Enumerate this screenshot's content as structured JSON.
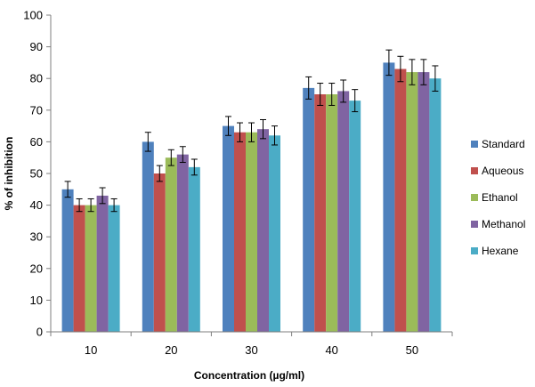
{
  "chart_data": {
    "type": "bar",
    "xlabel": "Concentration (µg/ml)",
    "ylabel": "% of inhibition",
    "categories": [
      "10",
      "20",
      "30",
      "40",
      "50"
    ],
    "ylim": [
      0,
      100
    ],
    "yticks": [
      0,
      10,
      20,
      30,
      40,
      50,
      60,
      70,
      80,
      90,
      100
    ],
    "grid": false,
    "legend_position": "right",
    "error_bars": true,
    "series": [
      {
        "name": "Standard",
        "color": "#4F81BD",
        "values": [
          45,
          60,
          65,
          77,
          85
        ],
        "errors": [
          2.5,
          3,
          3,
          3.5,
          4
        ]
      },
      {
        "name": "Aqueous",
        "color": "#C0504D",
        "values": [
          40,
          50,
          63,
          75,
          83
        ],
        "errors": [
          2,
          2.5,
          3,
          3.5,
          4
        ]
      },
      {
        "name": "Ethanol",
        "color": "#9BBB59",
        "values": [
          40,
          55,
          63,
          75,
          82
        ],
        "errors": [
          2,
          2.5,
          3,
          3.5,
          4
        ]
      },
      {
        "name": "Methanol",
        "color": "#8064A2",
        "values": [
          43,
          56,
          64,
          76,
          82
        ],
        "errors": [
          2.5,
          2.5,
          3,
          3.5,
          4
        ]
      },
      {
        "name": "Hexane",
        "color": "#4BACC6",
        "values": [
          40,
          52,
          62,
          73,
          80
        ],
        "errors": [
          2,
          2.5,
          3,
          3.5,
          4
        ]
      }
    ]
  }
}
